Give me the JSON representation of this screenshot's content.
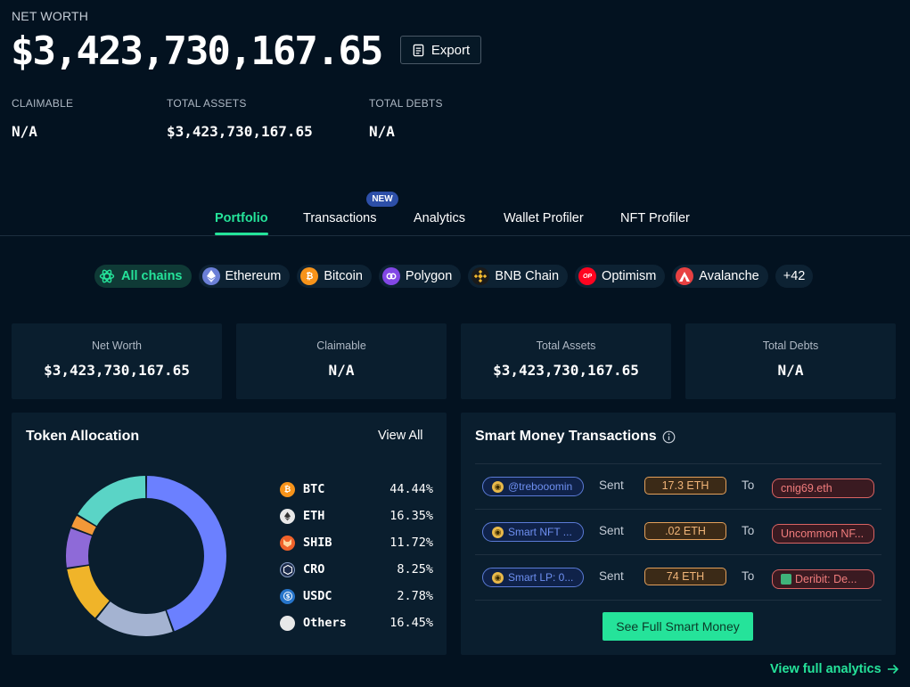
{
  "header": {
    "net_worth_label": "NET WORTH",
    "net_worth_value": "$3,423,730,167.65",
    "export_label": "Export",
    "stats": [
      {
        "label": "CLAIMABLE",
        "value": "N/A"
      },
      {
        "label": "TOTAL ASSETS",
        "value": "$3,423,730,167.65"
      },
      {
        "label": "TOTAL DEBTS",
        "value": "N/A"
      }
    ]
  },
  "tabs": {
    "items": [
      "Portfolio",
      "Transactions",
      "Analytics",
      "Wallet Profiler",
      "NFT Profiler"
    ],
    "active": "Portfolio",
    "new_badge": "NEW"
  },
  "chains": [
    {
      "label": "All chains",
      "icon": "all-chains-icon",
      "color": "#25e39a"
    },
    {
      "label": "Ethereum",
      "icon": "ethereum-icon",
      "color": "#6b7fd7"
    },
    {
      "label": "Bitcoin",
      "icon": "bitcoin-icon",
      "color": "#f7931a"
    },
    {
      "label": "Polygon",
      "icon": "polygon-icon",
      "color": "#8247e5"
    },
    {
      "label": "BNB Chain",
      "icon": "bnb-icon",
      "color": "#f3ba2f"
    },
    {
      "label": "Optimism",
      "icon": "optimism-icon",
      "color": "#ff0420"
    },
    {
      "label": "Avalanche",
      "icon": "avalanche-icon",
      "color": "#e84142"
    },
    {
      "label": "+42"
    }
  ],
  "summary": [
    {
      "label": "Net Worth",
      "value": "$3,423,730,167.65"
    },
    {
      "label": "Claimable",
      "value": "N/A"
    },
    {
      "label": "Total Assets",
      "value": "$3,423,730,167.65"
    },
    {
      "label": "Total Debts",
      "value": "N/A"
    }
  ],
  "allocation": {
    "title": "Token Allocation",
    "view_all": "View All",
    "tokens": [
      {
        "symbol": "BTC",
        "percent": "44.44%",
        "share": 44.44,
        "color": "#6b80ff",
        "icon_color": "#f7931a",
        "icon": "bitcoin-icon"
      },
      {
        "symbol": "ETH",
        "percent": "16.35%",
        "share": 16.35,
        "color": "#a4b3d1",
        "icon_color": "#e8e8e8",
        "icon": "ethereum-icon"
      },
      {
        "symbol": "SHIB",
        "percent": "11.72%",
        "share": 11.72,
        "color": "#f0b429",
        "icon_color": "#f0622a",
        "icon": "shib-icon"
      },
      {
        "symbol": "CRO",
        "percent": "8.25%",
        "share": 8.25,
        "color": "#8e6ad8",
        "icon_color": "#1b2a4a",
        "icon": "cro-icon"
      },
      {
        "symbol": "USDC",
        "percent": "2.78%",
        "share": 2.78,
        "color": "#f29838",
        "icon_color": "#2775ca",
        "icon": "usdc-icon"
      },
      {
        "symbol": "Others",
        "percent": "16.45%",
        "share": 16.45,
        "color": "#5ad4c6",
        "icon_color": "#e8e8e8",
        "icon": "others-icon"
      }
    ]
  },
  "smart_money": {
    "title": "Smart Money Transactions",
    "rows": [
      {
        "from": "@trebooomin",
        "verb": "Sent",
        "amount": "17.3 ETH",
        "to_word": "To",
        "to": "cnig69.eth"
      },
      {
        "from": "Smart NFT ...",
        "verb": "Sent",
        "amount": ".02 ETH",
        "to_word": "To",
        "to": "Uncommon NF..."
      },
      {
        "from": "Smart LP: 0...",
        "verb": "Sent",
        "amount": "74 ETH",
        "to_word": "To",
        "to": "Deribit: De..."
      }
    ],
    "see_full": "See Full Smart Money"
  },
  "footer": {
    "view_full": "View full analytics"
  }
}
